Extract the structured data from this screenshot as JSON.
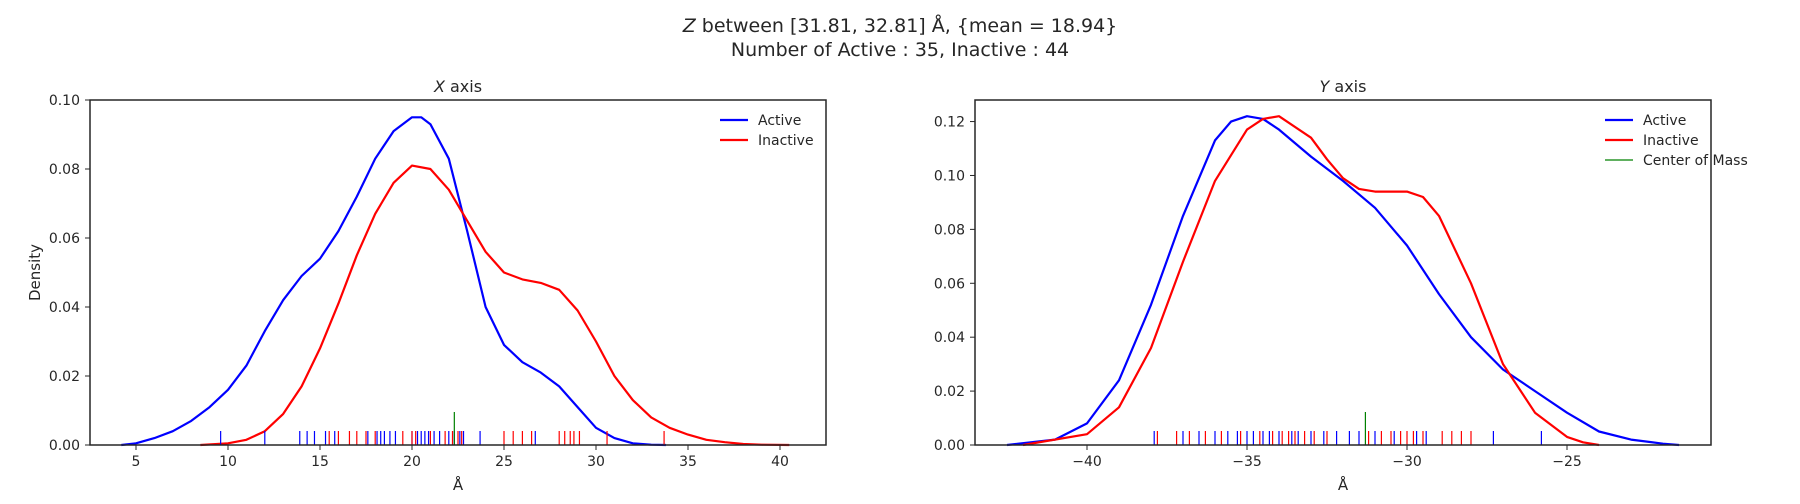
{
  "figure": {
    "suptitle_line1": "Z between [31.81, 32.81] Å, {mean = 18.94}",
    "suptitle_line2": "Number of Active : 35, Inactive : 44"
  },
  "chart_data": [
    {
      "type": "line",
      "title": "X axis",
      "xlabel": "Å",
      "ylabel": "Density",
      "xlim": [
        2.5,
        42.5
      ],
      "ylim": [
        0,
        0.1
      ],
      "xticks": [
        5,
        10,
        15,
        20,
        25,
        30,
        35,
        40
      ],
      "xtick_labels": [
        "5",
        "10",
        "15",
        "20",
        "25",
        "30",
        "35",
        "40"
      ],
      "yticks": [
        0,
        0.02,
        0.04,
        0.06,
        0.08,
        0.1
      ],
      "ytick_labels": [
        "0.00",
        "0.02",
        "0.04",
        "0.06",
        "0.08",
        "0.10"
      ],
      "grid": false,
      "legend_position": "top-right",
      "series": [
        {
          "name": "Active",
          "color": "#0000ff",
          "x": [
            4.2,
            5,
            6,
            7,
            8,
            9,
            10,
            11,
            12,
            13,
            14,
            15,
            16,
            17,
            18,
            19,
            20,
            20.5,
            21,
            22,
            23,
            24,
            25,
            26,
            27,
            28,
            29,
            30,
            31,
            32,
            33,
            33.8
          ],
          "y": [
            0.0,
            0.0005,
            0.002,
            0.004,
            0.007,
            0.011,
            0.016,
            0.023,
            0.033,
            0.042,
            0.049,
            0.054,
            0.062,
            0.072,
            0.083,
            0.091,
            0.095,
            0.095,
            0.093,
            0.083,
            0.062,
            0.04,
            0.029,
            0.024,
            0.021,
            0.017,
            0.011,
            0.005,
            0.002,
            0.0005,
            0.0001,
            0.0
          ]
        },
        {
          "name": "Inactive",
          "color": "#ff0000",
          "x": [
            8.5,
            10,
            11,
            12,
            13,
            14,
            15,
            16,
            17,
            18,
            19,
            20,
            21,
            22,
            23,
            24,
            25,
            26,
            27,
            28,
            29,
            30,
            31,
            32,
            33,
            34,
            35,
            36,
            37,
            38,
            39,
            40.5
          ],
          "y": [
            0.0,
            0.0005,
            0.0015,
            0.004,
            0.009,
            0.017,
            0.028,
            0.041,
            0.055,
            0.067,
            0.076,
            0.081,
            0.08,
            0.074,
            0.065,
            0.056,
            0.05,
            0.048,
            0.047,
            0.045,
            0.039,
            0.03,
            0.02,
            0.013,
            0.008,
            0.005,
            0.003,
            0.0015,
            0.0008,
            0.0003,
            0.0001,
            0.0
          ]
        }
      ],
      "rug": {
        "active_color": "#0000ff",
        "inactive_color": "#ff0000",
        "center_color": "#008000",
        "active": [
          9.6,
          12.0,
          13.9,
          14.3,
          14.7,
          15.3,
          15.8,
          17.6,
          18.1,
          18.3,
          18.5,
          18.8,
          19.1,
          20.0,
          20.3,
          20.5,
          20.7,
          20.9,
          21.2,
          21.5,
          22.0,
          22.3,
          22.6,
          22.8,
          23.7,
          26.7
        ],
        "inactive": [
          15.5,
          16.0,
          16.6,
          17.0,
          17.5,
          18.0,
          19.5,
          20.0,
          20.2,
          21.0,
          21.8,
          22.2,
          22.5,
          22.7,
          25.0,
          25.5,
          26.0,
          26.5,
          28.0,
          28.3,
          28.6,
          28.8,
          29.1,
          30.6,
          33.7
        ],
        "center_of_mass": 22.3
      }
    },
    {
      "type": "line",
      "title": "Y axis",
      "xlabel": "Å",
      "ylabel": "",
      "xlim": [
        -43.5,
        -20.5
      ],
      "ylim": [
        0,
        0.128
      ],
      "xticks": [
        -40,
        -35,
        -30,
        -25
      ],
      "xtick_labels": [
        "−40",
        "−35",
        "−30",
        "−25"
      ],
      "yticks": [
        0,
        0.02,
        0.04,
        0.06,
        0.08,
        0.1,
        0.12
      ],
      "ytick_labels": [
        "0.00",
        "0.02",
        "0.04",
        "0.06",
        "0.08",
        "0.10",
        "0.12"
      ],
      "grid": false,
      "legend_position": "top-right",
      "series": [
        {
          "name": "Active",
          "color": "#0000ff",
          "x": [
            -42.5,
            -41,
            -40,
            -39,
            -38,
            -37,
            -36,
            -35.5,
            -35,
            -34.5,
            -34,
            -33,
            -32,
            -31,
            -30,
            -29,
            -28,
            -27,
            -26,
            -25,
            -24,
            -23,
            -22,
            -21.5
          ],
          "y": [
            0.0,
            0.002,
            0.008,
            0.024,
            0.052,
            0.085,
            0.113,
            0.12,
            0.122,
            0.121,
            0.117,
            0.107,
            0.098,
            0.088,
            0.074,
            0.056,
            0.04,
            0.028,
            0.02,
            0.012,
            0.005,
            0.002,
            0.0005,
            0.0
          ]
        },
        {
          "name": "Inactive",
          "color": "#ff0000",
          "x": [
            -42,
            -40,
            -39,
            -38,
            -37,
            -36,
            -35,
            -34.5,
            -34,
            -33,
            -32.5,
            -32,
            -31.5,
            -31,
            -30.5,
            -30,
            -29.5,
            -29,
            -28,
            -27,
            -26,
            -25,
            -24.5,
            -24
          ],
          "y": [
            0.0,
            0.004,
            0.014,
            0.036,
            0.068,
            0.098,
            0.117,
            0.121,
            0.122,
            0.114,
            0.106,
            0.099,
            0.095,
            0.094,
            0.094,
            0.094,
            0.092,
            0.085,
            0.06,
            0.03,
            0.012,
            0.003,
            0.001,
            0.0
          ]
        }
      ],
      "legend_extra": {
        "name": "Center of Mass",
        "color": "#008000"
      },
      "rug": {
        "active_color": "#0000ff",
        "inactive_color": "#ff0000",
        "center_color": "#008000",
        "active": [
          -37.9,
          -37.0,
          -36.5,
          -36.0,
          -35.6,
          -35.3,
          -35.0,
          -34.8,
          -34.5,
          -34.3,
          -34.0,
          -33.6,
          -33.4,
          -33.0,
          -32.6,
          -32.2,
          -31.8,
          -31.5,
          -31.0,
          -30.4,
          -29.7,
          -29.4,
          -27.3,
          -25.8
        ],
        "inactive": [
          -37.8,
          -37.2,
          -36.8,
          -36.3,
          -35.8,
          -35.2,
          -34.6,
          -34.2,
          -33.9,
          -33.7,
          -33.5,
          -33.2,
          -32.9,
          -32.5,
          -31.2,
          -30.8,
          -30.5,
          -30.2,
          -30.0,
          -29.8,
          -29.5,
          -28.9,
          -28.6,
          -28.3,
          -28.0
        ],
        "center_of_mass": -31.3
      }
    }
  ]
}
